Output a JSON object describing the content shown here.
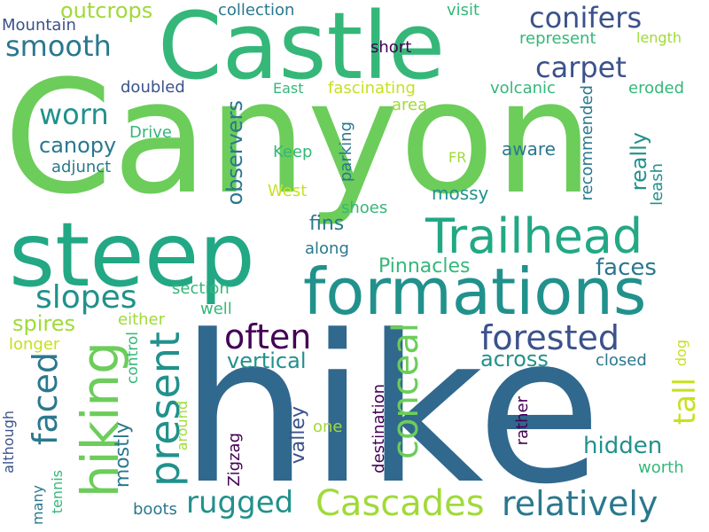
{
  "palette": {
    "background": "#ffffff",
    "dark_purple": "#440154",
    "indigo": "#3b528b",
    "blue": "#31688e",
    "teal_blue": "#2a788e",
    "teal": "#21918c",
    "sea_green": "#22a884",
    "green": "#35b779",
    "light_green": "#6ccd5a",
    "lime": "#a0da39",
    "yellow_green": "#c8e020",
    "yellow": "#fde725"
  },
  "words": {
    "canyon": "Canyon",
    "hike": "hike",
    "castle": "Castle",
    "steep": "steep",
    "formations": "formations",
    "trailhead": "Trailhead",
    "hiking": "hiking",
    "cascades": "Cascades",
    "relatively": "relatively",
    "forested": "forested",
    "often": "often",
    "present": "present",
    "conceal": "conceal",
    "faced": "faced",
    "conifers": "conifers",
    "smooth": "smooth",
    "carpet": "carpet",
    "slopes": "slopes",
    "worn": "worn",
    "rugged": "rugged",
    "tall": "tall",
    "canopy": "canopy",
    "vertical": "vertical",
    "across": "across",
    "hidden": "hidden",
    "observers": "observers",
    "really": "really",
    "pinnacles": "Pinnacles",
    "faces": "faces",
    "spires": "spires",
    "fins": "fins",
    "outcrops": "outcrops",
    "collection": "collection",
    "visit": "visit",
    "mountain": "Mountain",
    "short": "short",
    "represent": "represent",
    "length": "length",
    "doubled": "doubled",
    "east": "East",
    "fascinating": "fascinating",
    "volcanic": "volcanic",
    "eroded": "eroded",
    "area": "area",
    "recommended": "recommended",
    "drive": "Drive",
    "adjunct": "adjunct",
    "keep": "Keep",
    "fr": "FR",
    "aware": "aware",
    "west": "West",
    "parking": "parking",
    "mossy": "mossy",
    "leash": "leash",
    "shoes": "shoes",
    "along": "along",
    "section": "section",
    "well": "well",
    "either": "either",
    "longer": "longer",
    "control": "control",
    "closed": "closed",
    "dog": "dog",
    "valley": "valley",
    "mostly": "mostly",
    "around": "around",
    "zigzag": "Zigzag",
    "destination": "destination",
    "rather": "rather",
    "one": "one",
    "worth": "worth",
    "although": "although",
    "many": "many",
    "tennis": "tennis",
    "boots": "boots"
  }
}
